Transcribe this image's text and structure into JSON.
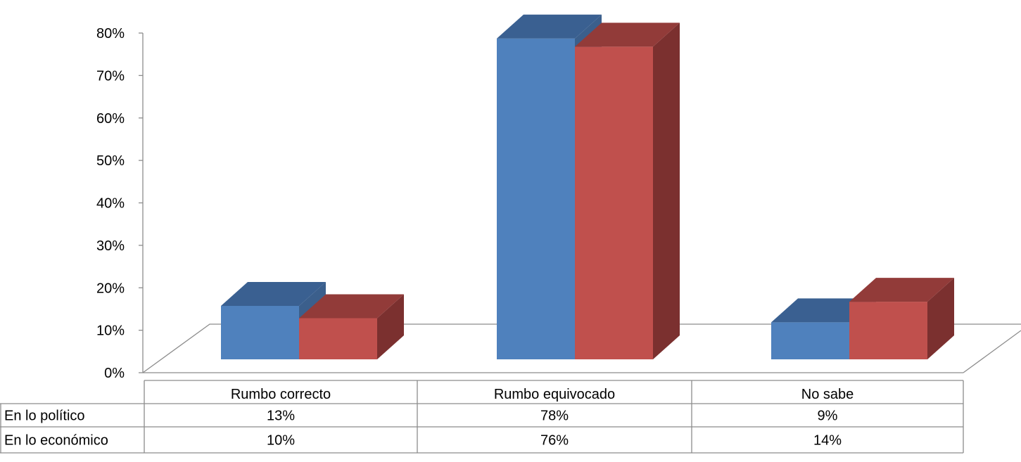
{
  "chart_data": {
    "type": "bar",
    "title": "",
    "xlabel": "",
    "ylabel": "",
    "ylim": [
      0,
      80
    ],
    "ytick_step": 10,
    "ytick_suffix": "%",
    "categories": [
      "Rumbo correcto",
      "Rumbo equivocado",
      "No sabe"
    ],
    "series": [
      {
        "name": "En lo político",
        "values": [
          13,
          78,
          9
        ],
        "labels": [
          "13%",
          "78%",
          "9%"
        ]
      },
      {
        "name": "En lo económico",
        "values": [
          10,
          76,
          14
        ],
        "labels": [
          "10%",
          "76%",
          "14%"
        ]
      }
    ],
    "data_table": true,
    "legend": "data-table"
  },
  "colors": {
    "series": [
      "#4F81BD",
      "#C0504D"
    ],
    "series_top": [
      "#3A6091",
      "#923B39"
    ],
    "series_side": [
      "#3B5F8C",
      "#7B302F"
    ],
    "axis": "#8c8c8c",
    "table_border": "#8c8c8c"
  }
}
